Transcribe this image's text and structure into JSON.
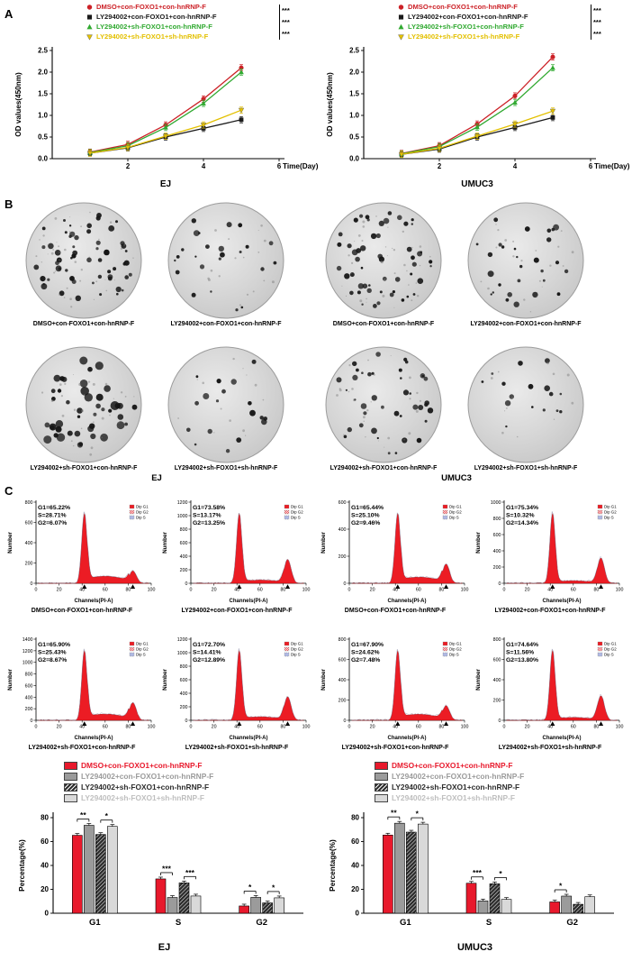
{
  "panels": {
    "A": {
      "label": "A"
    },
    "B": {
      "label": "B",
      "cell_line_labels": [
        "EJ",
        "UMUC3"
      ],
      "dishes": [
        {
          "group": "DMSO+con-FOXO1+con-hnRNP-F",
          "cell_line": "EJ",
          "colonies": 58
        },
        {
          "group": "LY294002+con-FOXO1+con-hnRNP-F",
          "cell_line": "EJ",
          "colonies": 24
        },
        {
          "group": "DMSO+con-FOXO1+con-hnRNP-F",
          "cell_line": "UMUC3",
          "colonies": 52
        },
        {
          "group": "LY294002+con-FOXO1+con-hnRNP-F",
          "cell_line": "UMUC3",
          "colonies": 28
        },
        {
          "group": "LY294002+sh-FOXO1+con-hnRNP-F",
          "cell_line": "EJ",
          "colonies": 44
        },
        {
          "group": "LY294002+sh-FOXO1+sh-hnRNP-F",
          "cell_line": "EJ",
          "colonies": 18
        },
        {
          "group": "LY294002+sh-FOXO1+con-hnRNP-F",
          "cell_line": "UMUC3",
          "colonies": 40
        },
        {
          "group": "LY294002+sh-FOXO1+sh-hnRNP-F",
          "cell_line": "UMUC3",
          "colonies": 16
        }
      ]
    },
    "C": {
      "label": "C",
      "flow_axis": {
        "xlabel": "Channels(PI-A)",
        "ylabel": "Number",
        "xticks": [
          0,
          20,
          40,
          60,
          80,
          100
        ]
      },
      "flow_legend": [
        "Dip G1",
        "Dip G2",
        "Dip S"
      ],
      "plots": [
        {
          "cell_line": "EJ",
          "group": "DMSO+con-FOXO1+con-hnRNP-F",
          "stats": {
            "G1": "65.22%",
            "S": "28.71%",
            "G2": "6.07%"
          },
          "yticks": [
            0,
            200,
            400,
            600,
            800
          ]
        },
        {
          "cell_line": "EJ",
          "group": "LY294002+con-FOXO1+con-hnRNP-F",
          "stats": {
            "G1": "73.58%",
            "S": "13.17%",
            "G2": "13.25%"
          },
          "yticks": [
            0,
            200,
            400,
            600,
            800,
            1000,
            1200
          ]
        },
        {
          "cell_line": "UMUC3",
          "group": "DMSO+con-FOXO1+con-hnRNP-F",
          "stats": {
            "G1": "65.44%",
            "S": "25.10%",
            "G2": "9.46%"
          },
          "yticks": [
            0,
            200,
            400,
            600
          ]
        },
        {
          "cell_line": "UMUC3",
          "group": "LY294002+con-FOXO1+con-hnRNP-F",
          "stats": {
            "G1": "75.34%",
            "S": "10.32%",
            "G2": "14.34%"
          },
          "yticks": [
            0,
            200,
            400,
            600,
            800,
            1000
          ]
        },
        {
          "cell_line": "EJ",
          "group": "LY294002+sh-FOXO1+con-hnRNP-F",
          "stats": {
            "G1": "65.90%",
            "S": "25.43%",
            "G2": "8.67%"
          },
          "yticks": [
            0,
            200,
            400,
            600,
            800,
            1000,
            1200,
            1400
          ]
        },
        {
          "cell_line": "EJ",
          "group": "LY294002+sh-FOXO1+sh-hnRNP-F",
          "stats": {
            "G1": "72.70%",
            "S": "14.41%",
            "G2": "12.89%"
          },
          "yticks": [
            0,
            200,
            400,
            600,
            800,
            1000,
            1200
          ]
        },
        {
          "cell_line": "UMUC3",
          "group": "LY294002+sh-FOXO1+con-hnRNP-F",
          "stats": {
            "G1": "67.90%",
            "S": "24.62%",
            "G2": "7.48%"
          },
          "yticks": [
            0,
            200,
            400,
            600,
            800
          ]
        },
        {
          "cell_line": "UMUC3",
          "group": "LY294002+sh-FOXO1+sh-hnRNP-F",
          "stats": {
            "G1": "74.64%",
            "S": "11.56%",
            "G2": "13.80%"
          },
          "yticks": [
            0,
            200,
            400,
            600,
            800
          ]
        }
      ]
    }
  },
  "chart_data": [
    {
      "type": "line",
      "cell_line": "EJ",
      "xlabel": "Time(Day)",
      "ylabel": "OD values(450nm)",
      "xlim": [
        0,
        6
      ],
      "ylim": [
        0,
        2.5
      ],
      "xticks": [
        2,
        4,
        6
      ],
      "yticks": [
        0,
        0.5,
        1.0,
        1.5,
        2.0,
        2.5
      ],
      "x": [
        1,
        2,
        3,
        4,
        5
      ],
      "series": [
        {
          "name": "DMSO+con-FOXO1+con-hnRNP-F",
          "color": "#cc2127",
          "marker": "circle",
          "values": [
            0.15,
            0.33,
            0.78,
            1.38,
            2.1
          ]
        },
        {
          "name": "LY294002+con-FOXO1+con-hnRNP-F",
          "color": "#1a1a1a",
          "marker": "square",
          "values": [
            0.13,
            0.25,
            0.5,
            0.7,
            0.9
          ]
        },
        {
          "name": "LY294002+sh-FOXO1+con-hnRNP-F",
          "color": "#30a930",
          "marker": "triangle-up",
          "values": [
            0.14,
            0.3,
            0.72,
            1.28,
            2.0
          ]
        },
        {
          "name": "LY294002+sh-FOXO1+sh-hnRNP-F",
          "color": "#e3c000",
          "marker": "triangle-down",
          "values": [
            0.13,
            0.26,
            0.52,
            0.78,
            1.12
          ]
        }
      ],
      "significance": [
        "***",
        "***",
        "***"
      ]
    },
    {
      "type": "line",
      "cell_line": "UMUC3",
      "xlabel": "Time(Day)",
      "ylabel": "OD values(450nm)",
      "xlim": [
        0,
        6
      ],
      "ylim": [
        0,
        2.5
      ],
      "xticks": [
        2,
        4,
        6
      ],
      "yticks": [
        0,
        0.5,
        1.0,
        1.5,
        2.0,
        2.5
      ],
      "x": [
        1,
        2,
        3,
        4,
        5
      ],
      "series": [
        {
          "name": "DMSO+con-FOXO1+con-hnRNP-F",
          "color": "#cc2127",
          "marker": "circle",
          "values": [
            0.12,
            0.3,
            0.8,
            1.45,
            2.35
          ]
        },
        {
          "name": "LY294002+con-FOXO1+con-hnRNP-F",
          "color": "#1a1a1a",
          "marker": "square",
          "values": [
            0.1,
            0.22,
            0.5,
            0.72,
            0.95
          ]
        },
        {
          "name": "LY294002+sh-FOXO1+con-hnRNP-F",
          "color": "#30a930",
          "marker": "triangle-up",
          "values": [
            0.11,
            0.28,
            0.73,
            1.3,
            2.1
          ]
        },
        {
          "name": "LY294002+sh-FOXO1+sh-hnRNP-F",
          "color": "#e3c000",
          "marker": "triangle-down",
          "values": [
            0.1,
            0.24,
            0.52,
            0.8,
            1.1
          ]
        }
      ],
      "significance": [
        "***",
        "***",
        "***"
      ]
    },
    {
      "type": "bar",
      "cell_line": "EJ",
      "ylabel": "Percentage(%)",
      "ylim": [
        0,
        80
      ],
      "yticks": [
        0,
        20,
        40,
        60,
        80
      ],
      "categories": [
        "G1",
        "S",
        "G2"
      ],
      "series": [
        {
          "name": "DMSO+con-FOXO1+con-hnRNP-F",
          "color": "#e8192c",
          "hatch": false,
          "values": [
            65.22,
            28.71,
            6.07
          ]
        },
        {
          "name": "LY294002+con-FOXO1+con-hnRNP-F",
          "color": "#9b9b9b",
          "hatch": false,
          "values": [
            73.58,
            13.17,
            13.25
          ]
        },
        {
          "name": "LY294002+sh-FOXO1+con-hnRNP-F",
          "color": "#2d2d2d",
          "hatch": true,
          "values": [
            65.9,
            25.43,
            8.67
          ]
        },
        {
          "name": "LY294002+sh-FOXO1+sh-hnRNP-F",
          "color": "#d9d9d9",
          "legend_color": "#bfbfbf",
          "hatch": false,
          "values": [
            72.7,
            14.41,
            12.89
          ]
        }
      ],
      "significance": [
        {
          "group": 0,
          "bars": [
            0,
            1
          ],
          "label": "**"
        },
        {
          "group": 0,
          "bars": [
            2,
            3
          ],
          "label": "*"
        },
        {
          "group": 1,
          "bars": [
            0,
            1
          ],
          "label": "***"
        },
        {
          "group": 1,
          "bars": [
            2,
            3
          ],
          "label": "***"
        },
        {
          "group": 2,
          "bars": [
            0,
            1
          ],
          "label": "*"
        },
        {
          "group": 2,
          "bars": [
            2,
            3
          ],
          "label": "*"
        }
      ]
    },
    {
      "type": "bar",
      "cell_line": "UMUC3",
      "ylabel": "Percentage(%)",
      "ylim": [
        0,
        80
      ],
      "yticks": [
        0,
        20,
        40,
        60,
        80
      ],
      "categories": [
        "G1",
        "S",
        "G2"
      ],
      "series": [
        {
          "name": "DMSO+con-FOXO1+con-hnRNP-F",
          "color": "#e8192c",
          "hatch": false,
          "values": [
            65.44,
            25.1,
            9.46
          ]
        },
        {
          "name": "LY294002+con-FOXO1+con-hnRNP-F",
          "color": "#9b9b9b",
          "hatch": false,
          "values": [
            75.34,
            10.32,
            14.34
          ]
        },
        {
          "name": "LY294002+sh-FOXO1+con-hnRNP-F",
          "color": "#2d2d2d",
          "hatch": true,
          "values": [
            67.9,
            24.62,
            7.48
          ]
        },
        {
          "name": "LY294002+sh-FOXO1+sh-hnRNP-F",
          "color": "#d9d9d9",
          "legend_color": "#bfbfbf",
          "hatch": false,
          "values": [
            74.64,
            11.56,
            13.8
          ]
        }
      ],
      "significance": [
        {
          "group": 0,
          "bars": [
            0,
            1
          ],
          "label": "**"
        },
        {
          "group": 0,
          "bars": [
            2,
            3
          ],
          "label": "*"
        },
        {
          "group": 1,
          "bars": [
            0,
            1
          ],
          "label": "***"
        },
        {
          "group": 1,
          "bars": [
            2,
            3
          ],
          "label": "*"
        },
        {
          "group": 2,
          "bars": [
            0,
            1
          ],
          "label": "*"
        }
      ]
    }
  ]
}
